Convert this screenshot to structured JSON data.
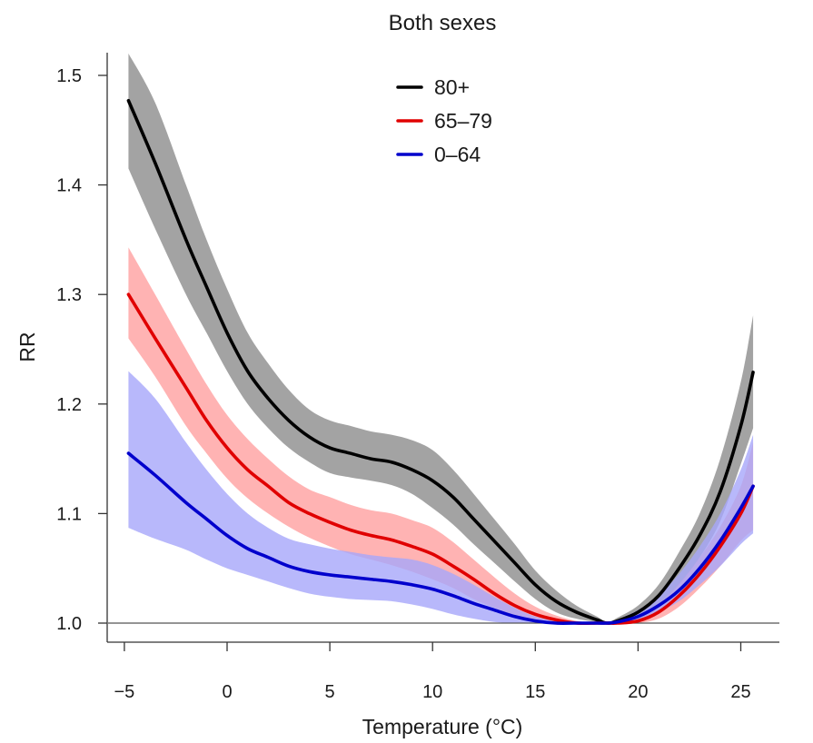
{
  "chart_data": {
    "type": "line",
    "title": "Both sexes",
    "xlabel": "Temperature (°C)",
    "ylabel": "RR",
    "xlim": [
      -5.6,
      26.9
    ],
    "ylim": [
      0.985,
      1.52
    ],
    "xticks": [
      -5,
      0,
      5,
      10,
      15,
      20,
      25
    ],
    "xtick_labels": [
      "−5",
      "0",
      "5",
      "10",
      "15",
      "20",
      "25"
    ],
    "yticks": [
      1.0,
      1.1,
      1.2,
      1.3,
      1.4,
      1.5
    ],
    "ytick_labels": [
      "1.0",
      "1.1",
      "1.2",
      "1.3",
      "1.4",
      "1.5"
    ],
    "reference_line": 1.0,
    "legend_position": "top-center",
    "x": [
      -4.8,
      -3.5,
      -2,
      -1,
      0,
      1,
      2,
      3,
      4,
      5,
      6,
      7,
      8,
      9,
      10,
      11,
      12,
      13,
      14,
      15,
      16,
      17,
      18,
      18.5,
      19,
      20,
      21,
      22,
      23,
      24,
      25,
      25.6
    ],
    "series": [
      {
        "name": "80+",
        "color": "#000000",
        "band_color": "#a3a3a3",
        "values": [
          1.477,
          1.42,
          1.35,
          1.307,
          1.265,
          1.23,
          1.205,
          1.185,
          1.17,
          1.16,
          1.155,
          1.15,
          1.147,
          1.14,
          1.13,
          1.115,
          1.095,
          1.075,
          1.055,
          1.035,
          1.02,
          1.01,
          1.003,
          1.0,
          1.002,
          1.01,
          1.025,
          1.05,
          1.08,
          1.12,
          1.18,
          1.229
        ],
        "lower": [
          1.415,
          1.36,
          1.3,
          1.265,
          1.23,
          1.2,
          1.178,
          1.16,
          1.147,
          1.137,
          1.133,
          1.13,
          1.126,
          1.118,
          1.105,
          1.09,
          1.072,
          1.055,
          1.038,
          1.022,
          1.01,
          1.004,
          1.001,
          1.0,
          1.0,
          1.004,
          1.015,
          1.035,
          1.06,
          1.093,
          1.145,
          1.178
        ],
        "upper": [
          1.52,
          1.475,
          1.4,
          1.35,
          1.305,
          1.265,
          1.237,
          1.213,
          1.195,
          1.185,
          1.18,
          1.175,
          1.172,
          1.167,
          1.158,
          1.14,
          1.118,
          1.095,
          1.072,
          1.048,
          1.03,
          1.016,
          1.006,
          1.001,
          1.005,
          1.016,
          1.035,
          1.065,
          1.1,
          1.15,
          1.22,
          1.281
        ]
      },
      {
        "name": "65–79",
        "color": "#e00000",
        "band_color": "#ffa0a0",
        "values": [
          1.3,
          1.26,
          1.215,
          1.185,
          1.16,
          1.14,
          1.125,
          1.11,
          1.1,
          1.092,
          1.085,
          1.08,
          1.076,
          1.07,
          1.063,
          1.052,
          1.04,
          1.027,
          1.016,
          1.008,
          1.003,
          1.0,
          1.0,
          1.0,
          1.0,
          1.002,
          1.01,
          1.025,
          1.045,
          1.07,
          1.1,
          1.125
        ],
        "lower": [
          1.26,
          1.225,
          1.18,
          1.155,
          1.132,
          1.114,
          1.1,
          1.088,
          1.078,
          1.07,
          1.063,
          1.058,
          1.053,
          1.047,
          1.04,
          1.032,
          1.022,
          1.014,
          1.007,
          1.003,
          1.001,
          1.0,
          1.0,
          1.0,
          1.0,
          1.0,
          1.004,
          1.015,
          1.032,
          1.052,
          1.075,
          1.085
        ],
        "upper": [
          1.343,
          1.3,
          1.25,
          1.218,
          1.19,
          1.168,
          1.15,
          1.134,
          1.122,
          1.115,
          1.108,
          1.103,
          1.1,
          1.094,
          1.087,
          1.074,
          1.058,
          1.042,
          1.027,
          1.015,
          1.007,
          1.002,
          1.0,
          1.0,
          1.002,
          1.006,
          1.018,
          1.036,
          1.06,
          1.088,
          1.125,
          1.165
        ]
      },
      {
        "name": "0–64",
        "color": "#0000cc",
        "band_color": "#a6a6fa",
        "values": [
          1.155,
          1.135,
          1.11,
          1.095,
          1.08,
          1.068,
          1.06,
          1.052,
          1.047,
          1.044,
          1.042,
          1.04,
          1.038,
          1.035,
          1.031,
          1.025,
          1.018,
          1.012,
          1.006,
          1.002,
          1.0,
          1.0,
          1.0,
          1.0,
          1.001,
          1.006,
          1.016,
          1.03,
          1.05,
          1.075,
          1.105,
          1.125
        ],
        "lower": [
          1.087,
          1.077,
          1.067,
          1.058,
          1.05,
          1.044,
          1.038,
          1.032,
          1.027,
          1.024,
          1.022,
          1.021,
          1.02,
          1.017,
          1.013,
          1.008,
          1.004,
          1.001,
          1.0,
          1.0,
          1.0,
          1.0,
          1.0,
          1.0,
          1.0,
          1.002,
          1.01,
          1.02,
          1.035,
          1.052,
          1.072,
          1.082
        ],
        "upper": [
          1.23,
          1.205,
          1.165,
          1.14,
          1.118,
          1.1,
          1.087,
          1.077,
          1.072,
          1.068,
          1.065,
          1.062,
          1.06,
          1.058,
          1.053,
          1.045,
          1.035,
          1.024,
          1.014,
          1.006,
          1.002,
          1.0,
          1.0,
          1.0,
          1.003,
          1.012,
          1.025,
          1.045,
          1.07,
          1.1,
          1.14,
          1.172
        ]
      }
    ]
  }
}
